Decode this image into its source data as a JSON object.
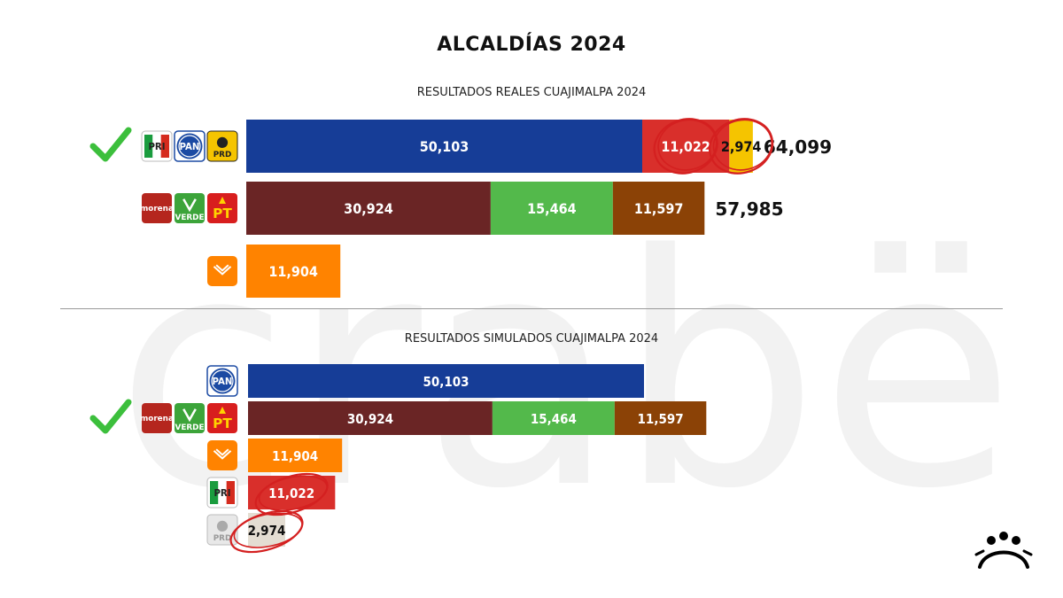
{
  "title": "ALCALDÍAS 2024",
  "colors": {
    "PAN": "#163d97",
    "PRI": "#d92f2b",
    "PRD": "#f5c400",
    "PRD_simulated": "#e4ddd2",
    "MORENA": "#6a2525",
    "VERDE": "#53b94b",
    "PT": "#8b4206",
    "MC": "#ff8300",
    "check": "#3cbf3c",
    "highlight_circle": "#d42020"
  },
  "chart_data": [
    {
      "type": "bar",
      "stacked": true,
      "orientation": "horizontal",
      "title": "RESULTADOS REALES CUAJIMALPA 2024",
      "rows": [
        {
          "logos": [
            "PRI",
            "PAN",
            "PRD"
          ],
          "winner": true,
          "segments": [
            {
              "party": "PAN",
              "value": 50103,
              "label": "50,103"
            },
            {
              "party": "PRI",
              "value": 11022,
              "label": "11,022"
            },
            {
              "party": "PRD",
              "value": 2974,
              "label": "2,974"
            }
          ],
          "total_label": "64,099"
        },
        {
          "logos": [
            "MORENA",
            "VERDE",
            "PT"
          ],
          "winner": false,
          "segments": [
            {
              "party": "MORENA",
              "value": 30924,
              "label": "30,924"
            },
            {
              "party": "VERDE",
              "value": 15464,
              "label": "15,464"
            },
            {
              "party": "PT",
              "value": 11597,
              "label": "11,597"
            }
          ],
          "total_label": "57,985"
        },
        {
          "logos": [
            "MC"
          ],
          "winner": false,
          "segments": [
            {
              "party": "MC",
              "value": 11904,
              "label": "11,904"
            }
          ],
          "total_label": ""
        }
      ],
      "circled": [
        "11,022",
        "2,974"
      ]
    },
    {
      "type": "bar",
      "stacked": true,
      "orientation": "horizontal",
      "title": "RESULTADOS SIMULADOS CUAJIMALPA 2024",
      "rows": [
        {
          "logos": [
            "PAN"
          ],
          "winner": false,
          "segments": [
            {
              "party": "PAN",
              "value": 50103,
              "label": "50,103"
            }
          ]
        },
        {
          "logos": [
            "MORENA",
            "VERDE",
            "PT"
          ],
          "winner": true,
          "segments": [
            {
              "party": "MORENA",
              "value": 30924,
              "label": "30,924"
            },
            {
              "party": "VERDE",
              "value": 15464,
              "label": "15,464"
            },
            {
              "party": "PT",
              "value": 11597,
              "label": "11,597"
            }
          ]
        },
        {
          "logos": [
            "MC"
          ],
          "winner": false,
          "segments": [
            {
              "party": "MC",
              "value": 11904,
              "label": "11,904"
            }
          ]
        },
        {
          "logos": [
            "PRI"
          ],
          "winner": false,
          "segments": [
            {
              "party": "PRI",
              "value": 11022,
              "label": "11,022"
            }
          ]
        },
        {
          "logos": [
            "PRD"
          ],
          "winner": false,
          "segments": [
            {
              "party": "PRD_simulated",
              "value": 2974,
              "label": "2,974"
            }
          ]
        }
      ],
      "circled": [
        "11,022",
        "2,974"
      ]
    }
  ],
  "logo_text": {
    "PAN": "PAN",
    "PRI": "PRI",
    "PRD": "PRD",
    "MORENA": "morena",
    "VERDE": "VERDE",
    "PT": "PT"
  },
  "watermark_text": "crabë"
}
